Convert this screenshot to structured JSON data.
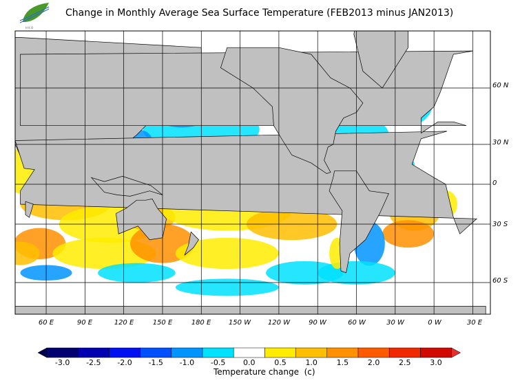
{
  "title": "Change in Monthly Average Sea Surface Temperature (FEB2013 minus JAN2013)",
  "logo": {
    "name": "leaf-logo",
    "text": "HKO"
  },
  "map": {
    "lat_labels": [
      "60 N",
      "30 N",
      "0",
      "30 S",
      "60 S"
    ],
    "lon_labels": [
      "60 E",
      "90 E",
      "120 E",
      "150 E",
      "180 E",
      "150 W",
      "120 W",
      "90 W",
      "60 W",
      "30 W",
      "0 W",
      "30 E"
    ],
    "colors": {
      "land": "#c0c0c0",
      "missing": "#e6e6e6",
      "grid": "#000000"
    }
  },
  "colorbar": {
    "title": "Temperature change  (c)",
    "ticks": [
      "-3.0",
      "-2.5",
      "-2.0",
      "-1.5",
      "-1.0",
      "-0.5",
      "0.0",
      "0.5",
      "1.0",
      "1.5",
      "2.0",
      "2.5",
      "3.0"
    ],
    "colors": [
      "#000070",
      "#0000b0",
      "#0010f0",
      "#0050ff",
      "#0094ff",
      "#00e0ff",
      "#ffffff",
      "#ffec00",
      "#ffbe00",
      "#ff9000",
      "#ff5a00",
      "#f02a00",
      "#d00a00"
    ],
    "under_color": "#000050",
    "over_color": "#e03030"
  }
}
